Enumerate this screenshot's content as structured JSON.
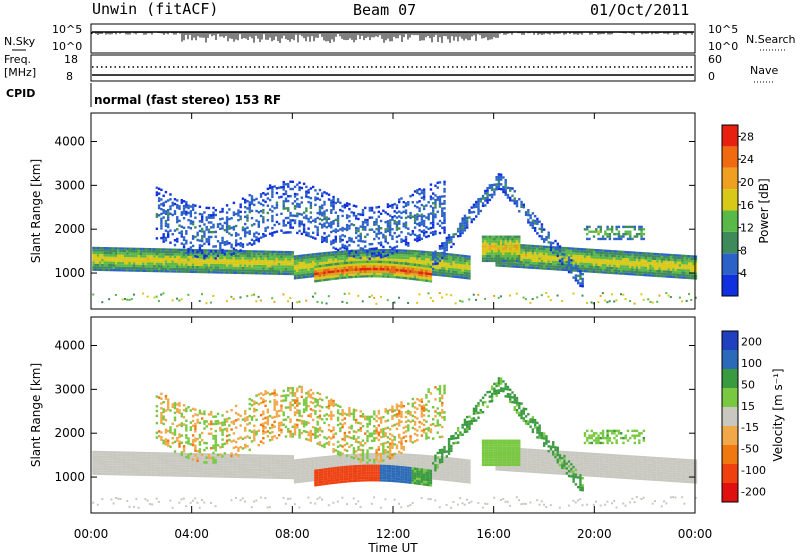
{
  "header": {
    "station": "Unwin (fitACF)",
    "beam": "Beam 07",
    "date": "01/Oct/2011"
  },
  "noise_panel": {
    "left_label": "N.Sky",
    "left_ticks": [
      "10^5",
      "10^0"
    ],
    "right_label": "N.Search",
    "right_ticks": [
      "10^5",
      "10^0"
    ]
  },
  "freq_panel": {
    "left_label_1": "Freq.",
    "left_label_2": "[MHz]",
    "left_ticks": [
      "18",
      "8"
    ],
    "right_label": "Nave",
    "right_ticks": [
      "60",
      "0"
    ]
  },
  "cpid_panel": {
    "label": "CPID",
    "text": "normal (fast stereo) 153 RF"
  },
  "colors": {
    "power_scale": [
      "#1030e0",
      "#2b62c8",
      "#3f8a5a",
      "#58b848",
      "#d8c818",
      "#f0a020",
      "#f06a10",
      "#e82010"
    ],
    "velocity_scale": [
      "#e01010",
      "#f04010",
      "#f07810",
      "#f0a848",
      "#c8c8c0",
      "#78c840",
      "#3a9a40",
      "#2a6ab8",
      "#2040c0"
    ]
  },
  "chart_data": [
    {
      "type": "heatmap",
      "name": "power",
      "ylabel": "Slant Range [km]",
      "yticks": [
        1000,
        2000,
        3000,
        4000
      ],
      "xticks": [
        0,
        4,
        8,
        12,
        16,
        20,
        24
      ],
      "xlim": [
        0,
        24
      ],
      "ylim": [
        180,
        4650
      ],
      "colorbar_label": "Power [dB]",
      "colorbar_ticks": [
        4,
        8,
        12,
        16,
        20,
        24,
        28
      ],
      "colorbar_range": [
        0,
        30
      ]
    },
    {
      "type": "heatmap",
      "name": "velocity",
      "ylabel": "Slant Range [km]",
      "yticks": [
        1000,
        2000,
        3000,
        4000
      ],
      "xticks": [
        0,
        4,
        8,
        12,
        16,
        20,
        24
      ],
      "xlim": [
        0,
        24
      ],
      "ylim": [
        180,
        4650
      ],
      "colorbar_label": "Velocity [m s⁻¹]",
      "colorbar_ticks": [
        200,
        100,
        50,
        15,
        -15,
        -50,
        -100,
        -200
      ]
    }
  ],
  "x_axis": {
    "label": "Time UT",
    "tick_labels": [
      "00:00",
      "04:00",
      "08:00",
      "12:00",
      "16:00",
      "20:00",
      "00:00"
    ]
  }
}
